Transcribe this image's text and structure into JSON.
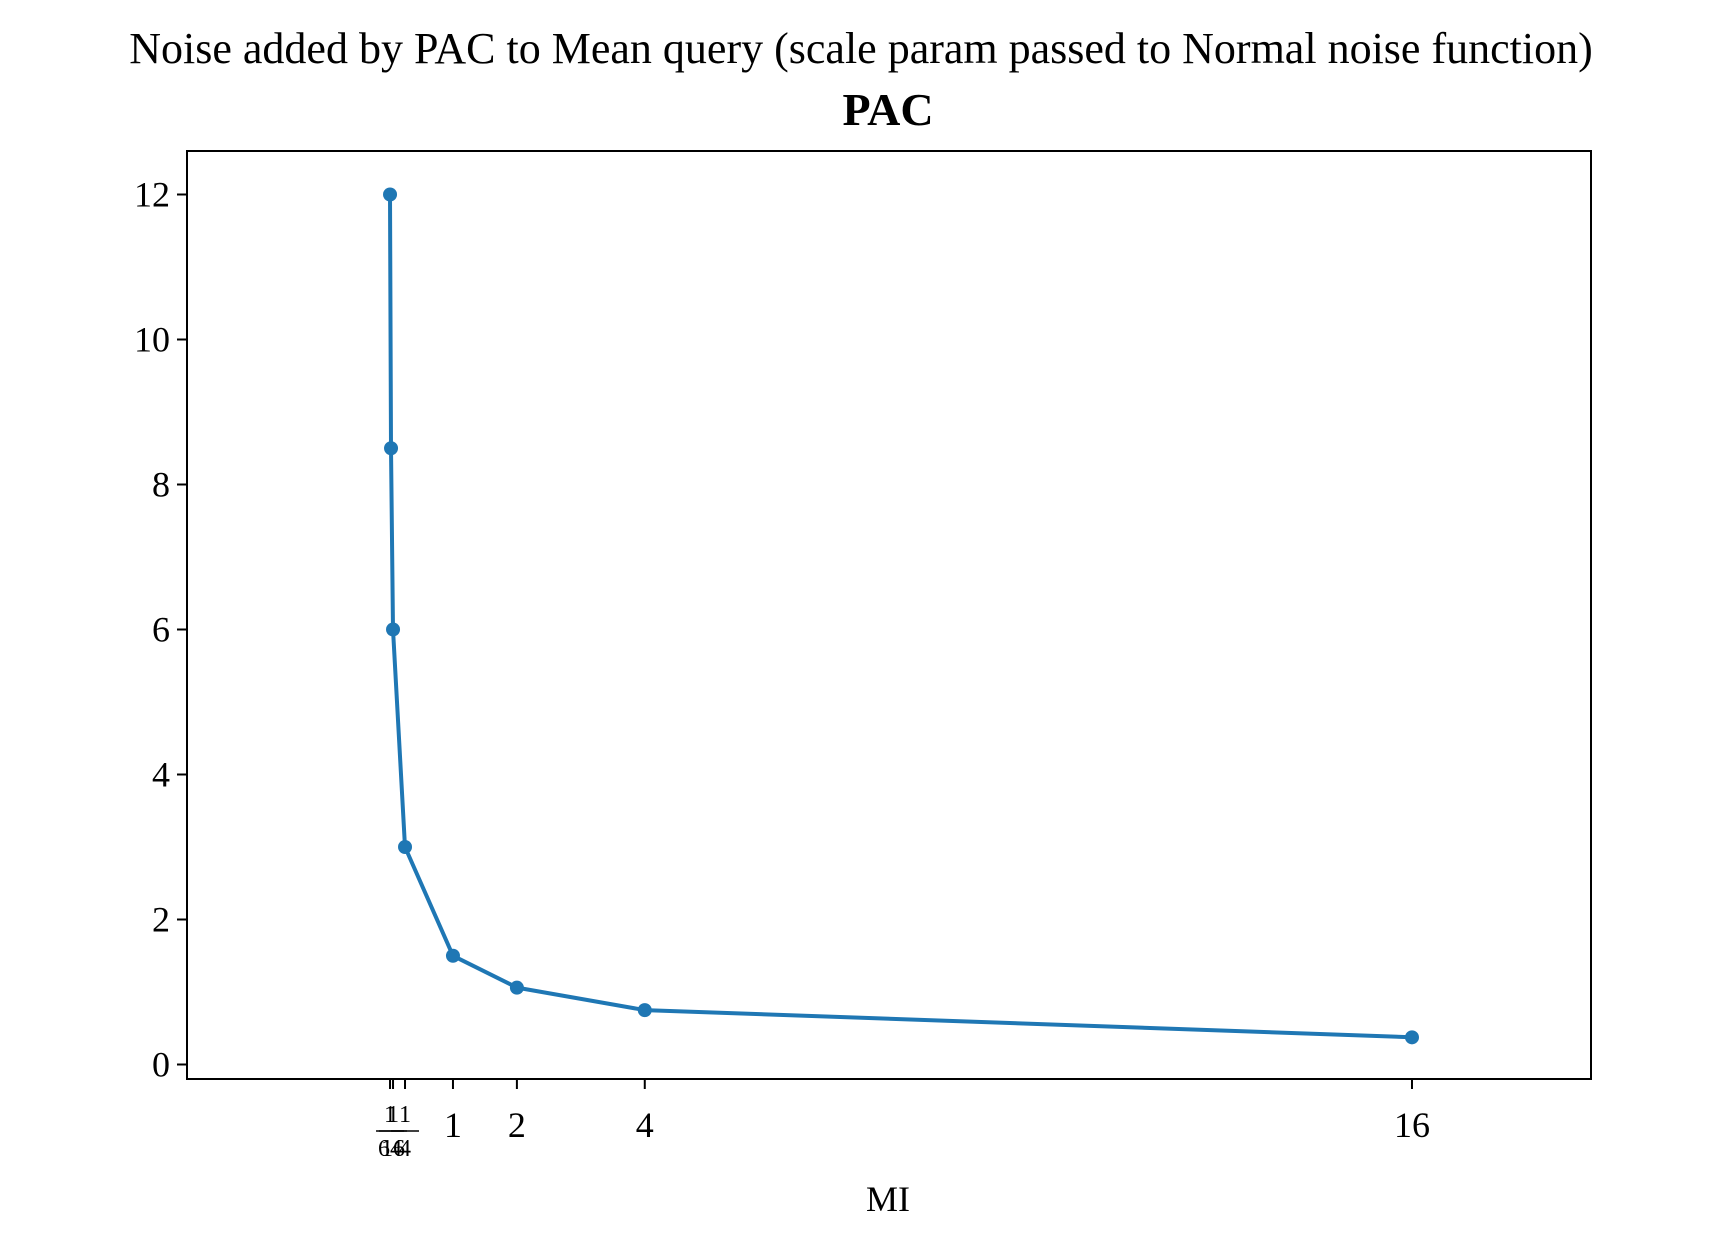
{
  "chart_data": {
    "type": "line",
    "title": "Noise added by PAC to Mean query (scale param passed to Normal noise function)",
    "subtitle": "PAC",
    "xlabel": "MI",
    "ylabel": "",
    "xlim": [
      -3.16,
      18.8
    ],
    "ylim": [
      -0.2,
      12.6
    ],
    "x_ticks": [
      {
        "value": 0.015625,
        "num": "1",
        "den": "64"
      },
      {
        "value": 0.0625,
        "num": "1",
        "den": "16"
      },
      {
        "value": 0.25,
        "num": "1",
        "den": "4"
      },
      {
        "value": 1,
        "label": "1"
      },
      {
        "value": 2,
        "label": "2"
      },
      {
        "value": 4,
        "label": "4"
      },
      {
        "value": 16,
        "label": "16"
      }
    ],
    "y_ticks": [
      0,
      2,
      4,
      6,
      8,
      10,
      12
    ],
    "grid": false,
    "series": [
      {
        "color": "#1f77b4",
        "x": [
          0.015625,
          0.03125,
          0.0625,
          0.25,
          1,
          2,
          4,
          16
        ],
        "y": [
          12.0,
          8.5,
          6.0,
          3.0,
          1.5,
          1.06,
          0.75,
          0.375
        ]
      }
    ]
  }
}
